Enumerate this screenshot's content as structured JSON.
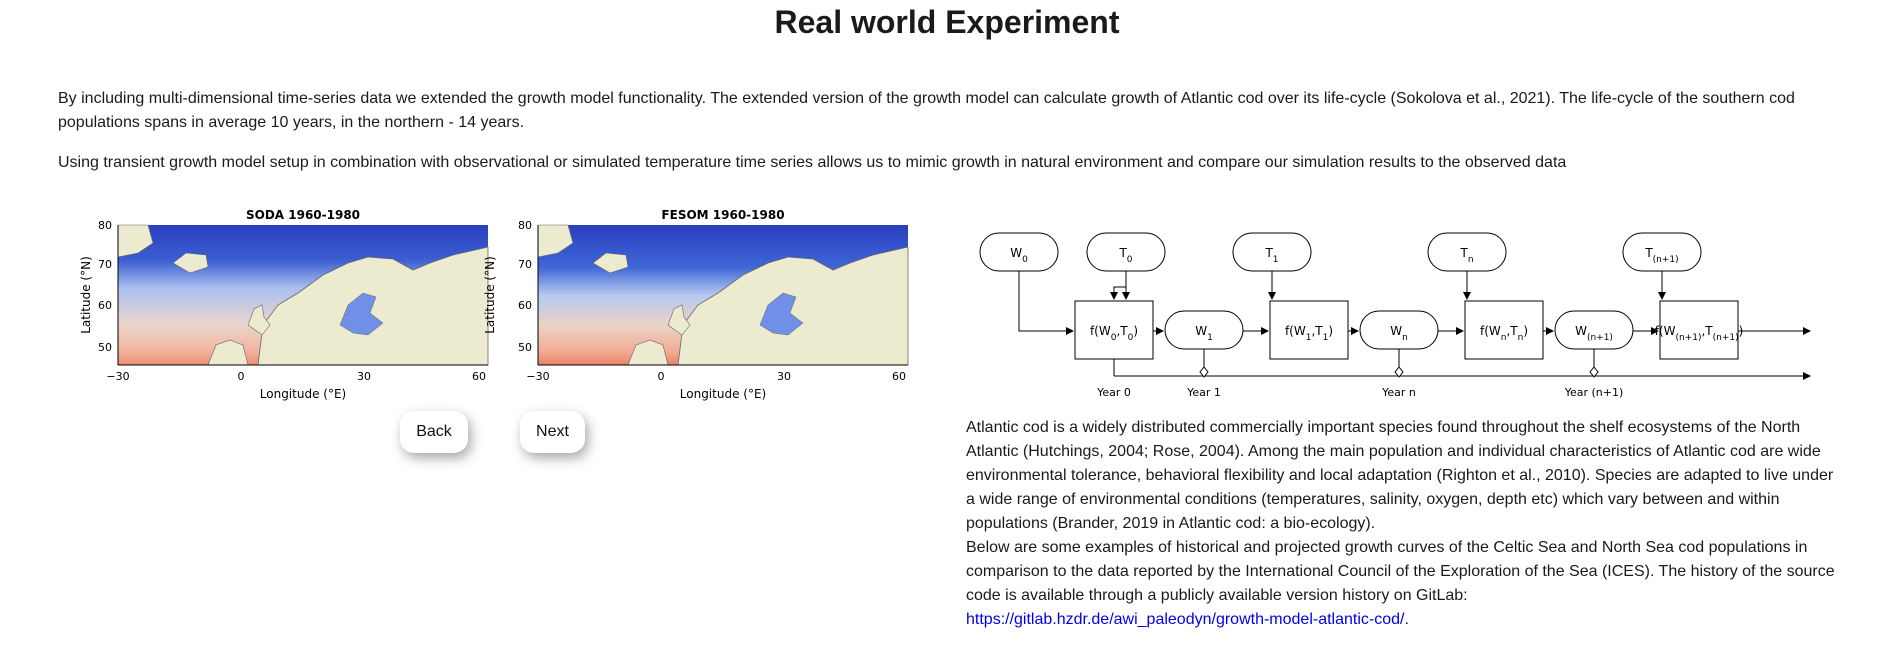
{
  "page": {
    "title": "Real world Experiment",
    "intro_1": "By including multi-dimensional time-series data we extended the growth model functionality. The extended version of the growth model can calculate growth of Atlantic cod over its life-cycle (Sokolova et al., 2021). The life-cycle of the southern cod populations spans in average 10 years, in the northern - 14 years.",
    "intro_2": "Using transient growth model setup in combination with observational or simulated temperature time series allows us to mimic growth in natural environment and compare our simulation results to the observed data"
  },
  "maps": [
    {
      "title": "SODA 1960-1980",
      "xlabel": "Longitude (°E)",
      "ylabel": "Latitude (°N)",
      "xticks": [
        "−30",
        "0",
        "30",
        "60"
      ],
      "yticks": [
        "80",
        "70",
        "60",
        "50"
      ]
    },
    {
      "title": "FESOM 1960-1980",
      "xlabel": "Longitude (°E)",
      "ylabel": "Latitude (°N)",
      "xticks": [
        "−30",
        "0",
        "30",
        "60"
      ],
      "yticks": [
        "80",
        "70",
        "60",
        "50"
      ]
    }
  ],
  "nav": {
    "back_label": "Back",
    "next_label": "Next"
  },
  "diagram": {
    "inputs": [
      {
        "base": "W",
        "sub": "0"
      },
      {
        "base": "T",
        "sub": "0"
      },
      {
        "base": "T",
        "sub": "1"
      },
      {
        "base": "T",
        "sub": "n"
      },
      {
        "base": "T",
        "sub": "(n+1)"
      }
    ],
    "functions": [
      {
        "base": "f(W",
        "a": "0",
        "mid": ",T",
        "b": "0",
        "end": ")"
      },
      {
        "base": "f(W",
        "a": "1",
        "mid": ",T",
        "b": "1",
        "end": ")"
      },
      {
        "base": "f(W",
        "a": "n",
        "mid": ",T",
        "b": "n",
        "end": ")"
      },
      {
        "base": "f(W",
        "a": "(n+1)",
        "mid": ",T",
        "b": "(n+1)",
        "end": ")"
      }
    ],
    "states": [
      {
        "base": "W",
        "sub": "1"
      },
      {
        "base": "W",
        "sub": "n"
      },
      {
        "base": "W",
        "sub": "(n+1)"
      }
    ],
    "years": [
      "Year 0",
      "Year 1",
      "Year n",
      "Year (n+1)"
    ]
  },
  "description": {
    "line_1": "Atlantic cod is a widely distributed commercially important species found throughout the shelf ecosystems of the North Atlantic (Hutchings, 2004; Rose, 2004). Among the main population and individual characteristics of Atlantic cod are wide environmental tolerance, behavioral flexibility and local adaptation (Righton et al., 2010). Species are adapted to live under a wide range of environmental conditions (temperatures, salinity, oxygen, depth etc) which vary between and within populations (Brander, 2019 in Atlantic cod: a bio-ecology).",
    "line_2": "Below are some examples of historical and projected growth curves of the Celtic Sea and North Sea cod populations in comparison to the data reported by the International Council of the Exploration of the Sea (ICES). The history of the source code is available through a publicly available version history on GitLab:",
    "link": "https://gitlab.hzdr.de/awi_paleodyn/growth-model-atlantic-cod/",
    "link_suffix": "."
  },
  "colors": {
    "sea_deep": "#2a3fbf",
    "sea_mid": "#7d9ae8",
    "sea_warm": "#f0a58f",
    "land": "#eceacf"
  }
}
